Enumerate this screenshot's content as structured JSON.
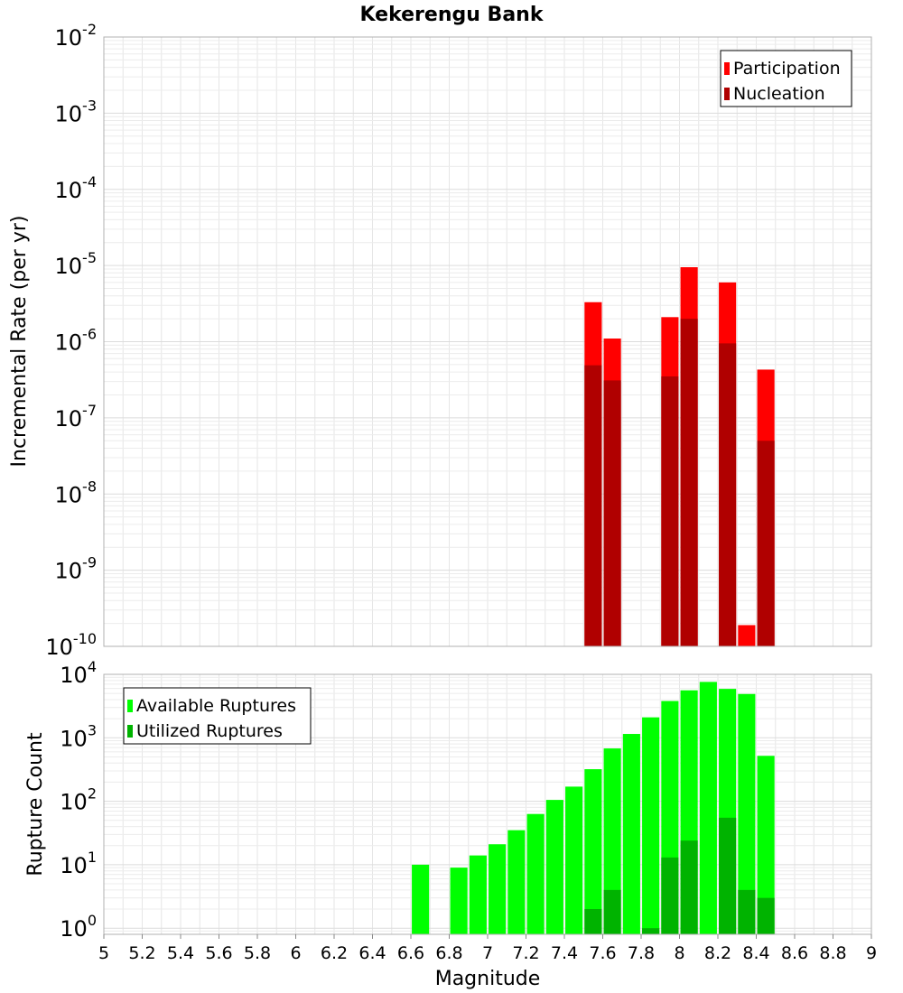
{
  "chart_data": [
    {
      "type": "bar",
      "title": "Kekerengu Bank",
      "ylabel": "Incremental Rate (per yr)",
      "xlabel": "",
      "y_scale": "log",
      "ylim": [
        1e-10,
        0.01
      ],
      "xlim": [
        5,
        9
      ],
      "grid": true,
      "legend_position": "top-right",
      "series": [
        {
          "name": "Participation",
          "color": "#ff0000",
          "points": [
            {
              "x": 7.55,
              "y": 3.3e-06
            },
            {
              "x": 7.65,
              "y": 1.1e-06
            },
            {
              "x": 7.95,
              "y": 2.1e-06
            },
            {
              "x": 8.05,
              "y": 9.5e-06
            },
            {
              "x": 8.25,
              "y": 6e-06
            },
            {
              "x": 8.35,
              "y": 1.9e-10
            },
            {
              "x": 8.45,
              "y": 4.3e-07
            }
          ]
        },
        {
          "name": "Nucleation",
          "color": "#b00000",
          "points": [
            {
              "x": 7.55,
              "y": 4.9e-07
            },
            {
              "x": 7.65,
              "y": 3.1e-07
            },
            {
              "x": 7.95,
              "y": 3.5e-07
            },
            {
              "x": 8.05,
              "y": 2e-06
            },
            {
              "x": 8.25,
              "y": 9.5e-07
            },
            {
              "x": 8.45,
              "y": 5e-08
            }
          ]
        }
      ],
      "y_ticks": [
        {
          "base": "10",
          "exp": "-2",
          "value": 0.01
        },
        {
          "base": "10",
          "exp": "-3",
          "value": 0.001
        },
        {
          "base": "10",
          "exp": "-4",
          "value": 0.0001
        },
        {
          "base": "10",
          "exp": "-5",
          "value": 1e-05
        },
        {
          "base": "10",
          "exp": "-6",
          "value": 1e-06
        },
        {
          "base": "10",
          "exp": "-7",
          "value": 1e-07
        },
        {
          "base": "10",
          "exp": "-8",
          "value": 1e-08
        },
        {
          "base": "10",
          "exp": "-9",
          "value": 1e-09
        },
        {
          "base": "10",
          "exp": "-10",
          "value": 1e-10
        }
      ]
    },
    {
      "type": "bar",
      "title": "",
      "ylabel": "Rupture Count",
      "xlabel": "Magnitude",
      "y_scale": "log",
      "ylim": [
        0.8,
        10000
      ],
      "xlim": [
        5,
        9
      ],
      "grid": true,
      "legend_position": "top-left",
      "series": [
        {
          "name": "Available Ruptures",
          "color": "#00ff00",
          "points": [
            {
              "x": 6.65,
              "y": 10
            },
            {
              "x": 6.85,
              "y": 9
            },
            {
              "x": 6.95,
              "y": 14
            },
            {
              "x": 7.05,
              "y": 21
            },
            {
              "x": 7.15,
              "y": 35
            },
            {
              "x": 7.25,
              "y": 63
            },
            {
              "x": 7.35,
              "y": 105
            },
            {
              "x": 7.45,
              "y": 170
            },
            {
              "x": 7.55,
              "y": 320
            },
            {
              "x": 7.65,
              "y": 680
            },
            {
              "x": 7.75,
              "y": 1150
            },
            {
              "x": 7.85,
              "y": 2100
            },
            {
              "x": 7.95,
              "y": 3800
            },
            {
              "x": 8.05,
              "y": 5600
            },
            {
              "x": 8.15,
              "y": 7600
            },
            {
              "x": 8.25,
              "y": 5900
            },
            {
              "x": 8.35,
              "y": 4900
            },
            {
              "x": 8.45,
              "y": 520
            }
          ]
        },
        {
          "name": "Utilized Ruptures",
          "color": "#00b300",
          "points": [
            {
              "x": 7.55,
              "y": 2
            },
            {
              "x": 7.65,
              "y": 4
            },
            {
              "x": 7.85,
              "y": 1
            },
            {
              "x": 7.95,
              "y": 13
            },
            {
              "x": 8.05,
              "y": 24
            },
            {
              "x": 8.25,
              "y": 55
            },
            {
              "x": 8.35,
              "y": 4
            },
            {
              "x": 8.45,
              "y": 3
            }
          ]
        }
      ],
      "y_ticks": [
        {
          "base": "10",
          "exp": "4",
          "value": 10000
        },
        {
          "base": "10",
          "exp": "3",
          "value": 1000
        },
        {
          "base": "10",
          "exp": "2",
          "value": 100
        },
        {
          "base": "10",
          "exp": "1",
          "value": 10
        },
        {
          "base": "10",
          "exp": "0",
          "value": 1
        }
      ],
      "x_ticks": [
        "5",
        "5.2",
        "5.4",
        "5.6",
        "5.8",
        "6",
        "6.2",
        "6.4",
        "6.6",
        "6.8",
        "7",
        "7.2",
        "7.4",
        "7.6",
        "7.8",
        "8",
        "8.2",
        "8.4",
        "8.6",
        "8.8",
        "9"
      ]
    }
  ]
}
